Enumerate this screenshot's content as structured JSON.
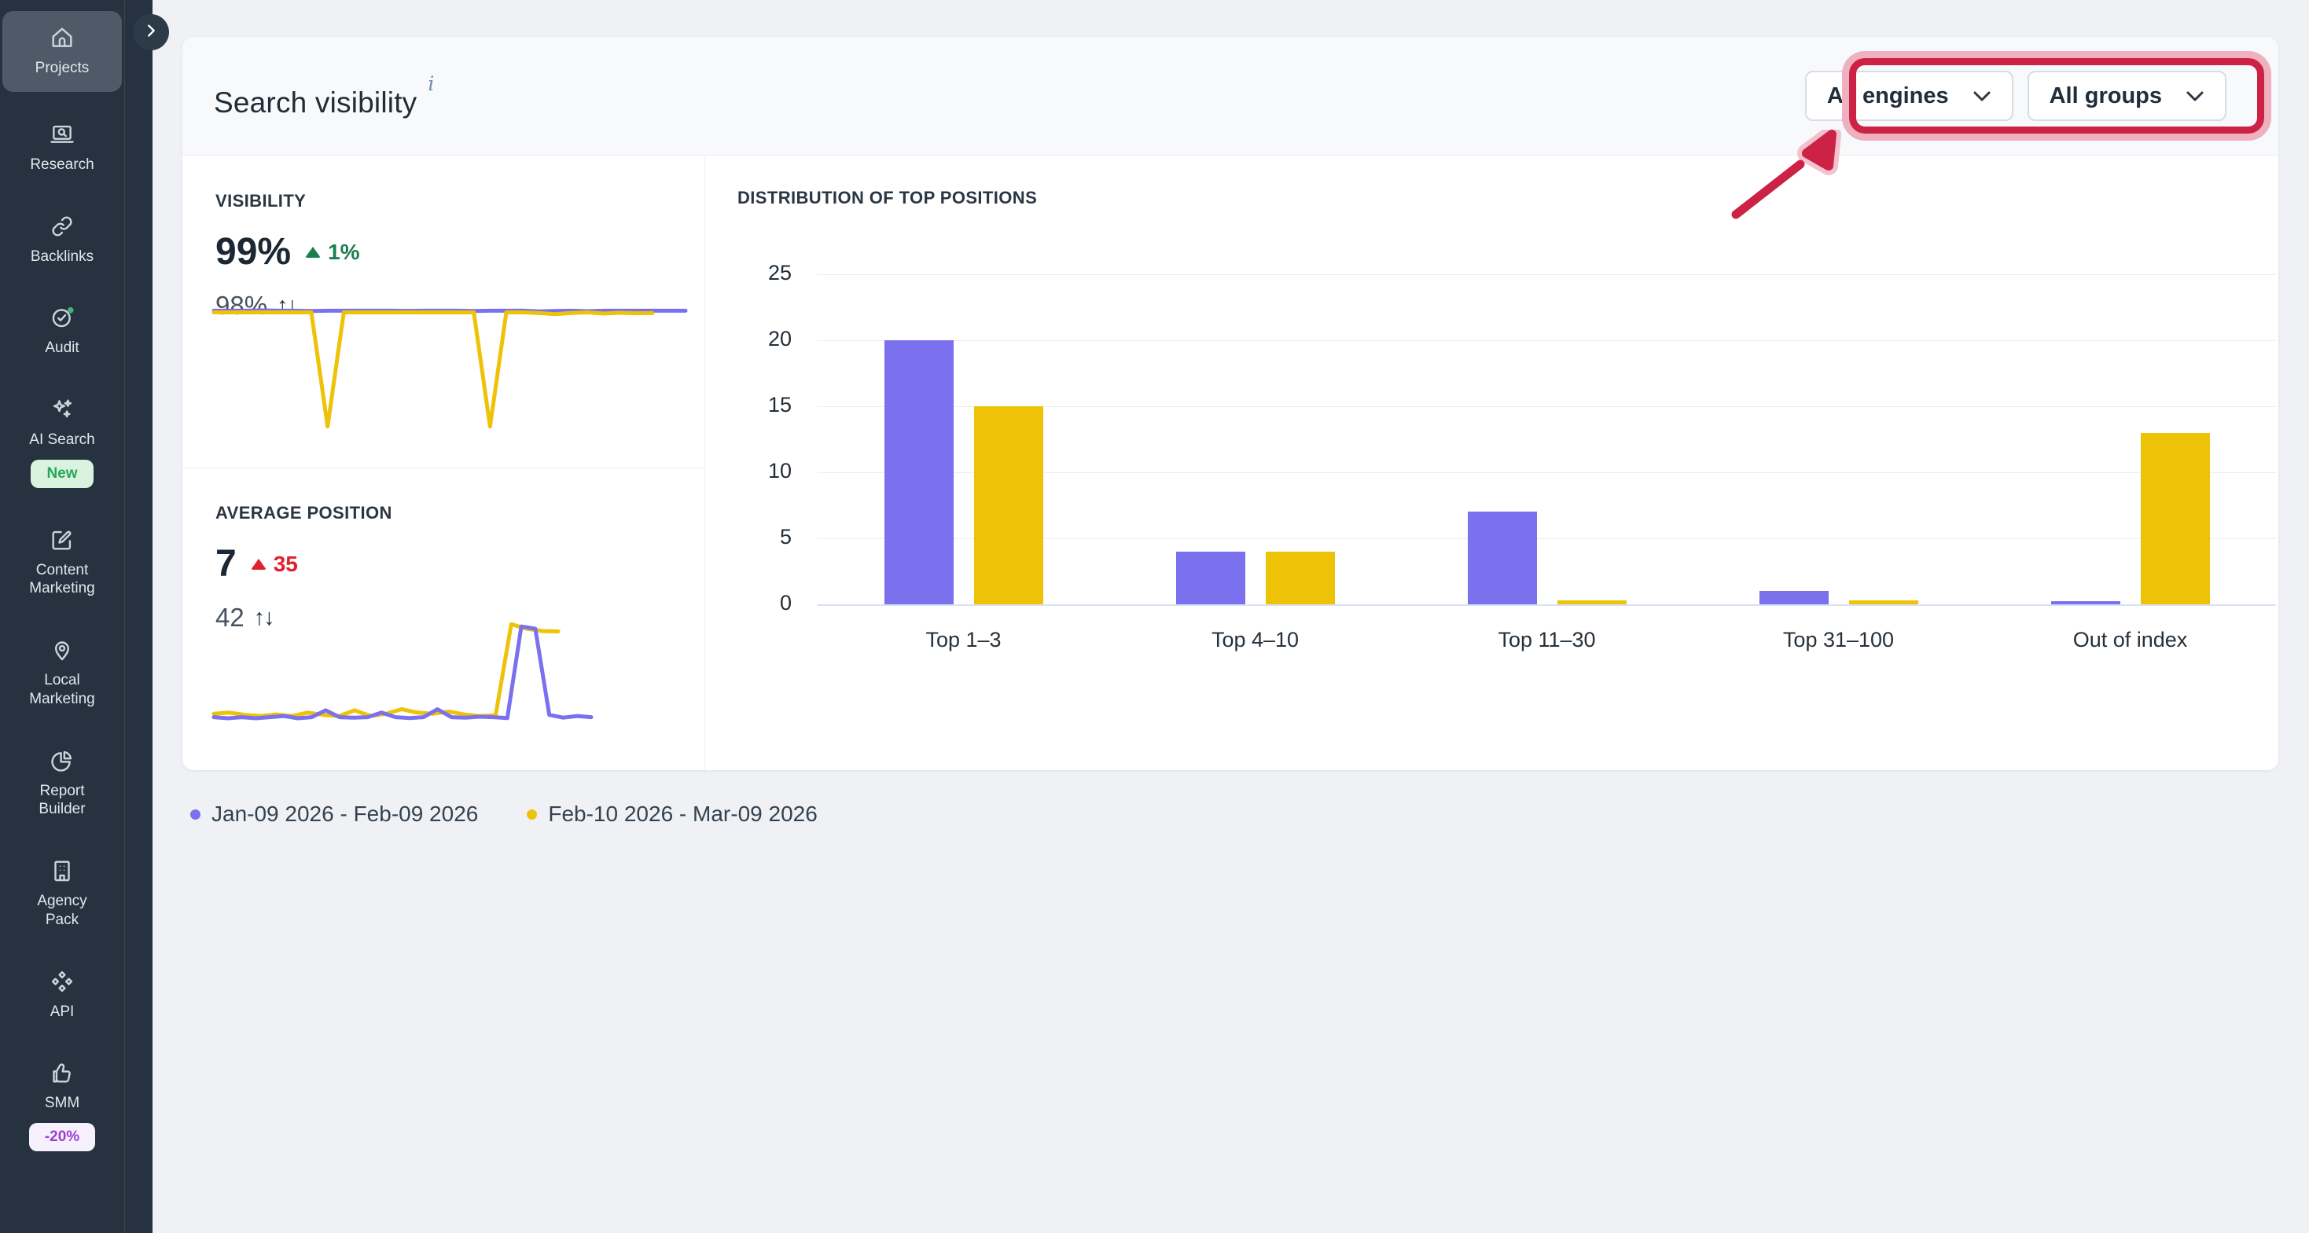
{
  "sidebar": {
    "collapse_button": {
      "icon": "chevron-right-icon"
    },
    "items": [
      {
        "label": "Projects",
        "icon": "home-icon",
        "active": true
      },
      {
        "label": "Research",
        "icon": "research-icon"
      },
      {
        "label": "Backlinks",
        "icon": "backlinks-icon"
      },
      {
        "label": "Audit",
        "icon": "audit-icon",
        "status_dot_color": "#4caf72"
      },
      {
        "label": "AI Search",
        "icon": "ai-search-icon",
        "badge": {
          "text": "New",
          "bg": "#d9f3df",
          "color": "#27a55a"
        }
      },
      {
        "label": "Content Marketing",
        "icon": "content-marketing-icon"
      },
      {
        "label": "Local Marketing",
        "icon": "local-marketing-icon"
      },
      {
        "label": "Report Builder",
        "icon": "report-builder-icon"
      },
      {
        "label": "Agency Pack",
        "icon": "agency-pack-icon"
      },
      {
        "label": "API",
        "icon": "api-icon"
      },
      {
        "label": "SMM",
        "icon": "smm-icon",
        "badge": {
          "text": "-20%",
          "bg": "#f7f0fd",
          "color": "#9b3fd1"
        }
      }
    ]
  },
  "panel": {
    "title": "Search visibility",
    "info_marker": "i",
    "filters": [
      {
        "label": "All engines",
        "icon": "chevron-down-icon"
      },
      {
        "label": "All groups",
        "icon": "chevron-down-icon"
      }
    ]
  },
  "metrics": {
    "visibility": {
      "label": "VISIBILITY",
      "value": "99%",
      "delta": "1%",
      "delta_direction": "up",
      "delta_color": "#1b7f4d",
      "compare_value": "98%"
    },
    "average_position": {
      "label": "AVERAGE POSITION",
      "value": "7",
      "delta": "35",
      "delta_direction": "up",
      "delta_color": "#e0202c",
      "compare_value": "42"
    }
  },
  "chart_data": [
    {
      "type": "bar",
      "title": "DISTRIBUTION OF TOP POSITIONS",
      "categories": [
        "Top 1–3",
        "Top 4–10",
        "Top 11–30",
        "Top 31–100",
        "Out of index"
      ],
      "series": [
        {
          "name": "Jan-09 2026 - Feb-09 2026",
          "color": "#7b70ee",
          "values": [
            20,
            4,
            7,
            1,
            0.2
          ]
        },
        {
          "name": "Feb-10 2026 - Mar-09 2026",
          "color": "#eec307",
          "values": [
            15,
            4,
            0.3,
            0.3,
            13
          ]
        }
      ],
      "ylim": [
        0,
        25
      ],
      "yticks": [
        0,
        5,
        10,
        15,
        20,
        25
      ],
      "grid": true,
      "legend_position": "bottom-left-outside"
    },
    {
      "type": "line",
      "title": "visibility-sparkline",
      "ylim": [
        20,
        102
      ],
      "series": [
        {
          "name": "Jan-09 2026 - Feb-09 2026",
          "color": "#7b70ee",
          "end": 1.0,
          "values": [
            99,
            99,
            99,
            99.2,
            99,
            99,
            98.8,
            99,
            99,
            99,
            99,
            99,
            98.9,
            99,
            99,
            99,
            98.8,
            99,
            99,
            99,
            98.6,
            98.9,
            99,
            98.7,
            99,
            99,
            99,
            99,
            99,
            99
          ]
        },
        {
          "name": "Feb-10 2026 - Mar-09 2026",
          "color": "#eec307",
          "end": 0.93,
          "values": [
            98,
            98,
            98,
            98,
            98,
            98,
            98,
            30,
            98,
            98,
            98,
            98,
            98,
            98,
            98,
            98,
            98,
            30,
            98,
            98,
            97.6,
            97,
            97.7,
            98,
            97.3,
            97.8,
            97.5,
            97.6
          ]
        }
      ]
    },
    {
      "type": "line",
      "title": "average-position-sparkline",
      "ylim": [
        0,
        52
      ],
      "series": [
        {
          "name": "Feb-10 2026 - Mar-09 2026",
          "color": "#eec307",
          "end": 0.73,
          "values": [
            6.5,
            7,
            6,
            5.5,
            6.2,
            5.5,
            7,
            6,
            5.5,
            8,
            5.5,
            6.5,
            8.5,
            7,
            6.5,
            7.5,
            6.2,
            5.5,
            5.8,
            46,
            44,
            43,
            42.8
          ]
        },
        {
          "name": "Jan-09 2026 - Feb-09 2026",
          "color": "#7b70ee",
          "end": 0.8,
          "values": [
            5,
            4.5,
            5,
            4.5,
            5,
            5.5,
            4.5,
            5,
            8,
            5,
            4.8,
            5,
            7,
            5,
            4.6,
            5,
            8.5,
            5,
            4.8,
            5.2,
            5,
            4.6,
            45,
            44,
            6,
            4.8,
            5.5,
            5
          ]
        }
      ]
    }
  ],
  "legend": {
    "items": [
      {
        "label": "Jan-09 2026 - Feb-09 2026",
        "color": "#7b70ee"
      },
      {
        "label": "Feb-10 2026 - Mar-09 2026",
        "color": "#eec307"
      }
    ]
  },
  "annotation": {
    "shape": "highlight-box-with-arrow",
    "color": "#cb2245",
    "halo_color": "#efb0bf",
    "target": "filters"
  }
}
